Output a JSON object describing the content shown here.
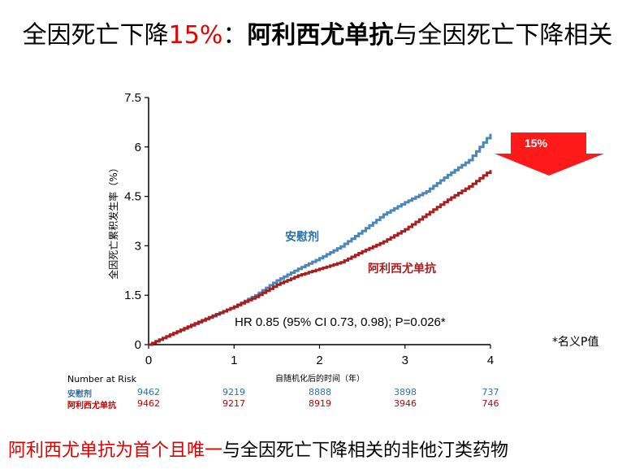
{
  "title": {
    "part1": "全因死亡下降",
    "part2": "15%",
    "part3": "：",
    "part4": "阿利西尤单抗",
    "part5": "与全因死亡下降相关"
  },
  "chart_data": {
    "type": "line",
    "ylabel": "全因死亡累积发生率（%）",
    "xlabel": "自随机化后的时间（年）",
    "ylim": [
      0,
      7.5
    ],
    "xlim": [
      0,
      4
    ],
    "yticks": [
      "0",
      "1.5",
      "3",
      "4.5",
      "6",
      "7.5"
    ],
    "xticks": [
      "0",
      "1",
      "2",
      "3",
      "4"
    ],
    "series": [
      {
        "name": "安慰剂",
        "color": "#4a86b8",
        "x": [
          0,
          0.25,
          0.5,
          0.75,
          1.0,
          1.25,
          1.5,
          1.75,
          2.0,
          2.25,
          2.5,
          2.75,
          3.0,
          3.25,
          3.5,
          3.75,
          4.0
        ],
        "y": [
          0,
          0.3,
          0.58,
          0.86,
          1.16,
          1.5,
          1.95,
          2.3,
          2.62,
          2.98,
          3.45,
          3.95,
          4.32,
          4.65,
          5.15,
          5.6,
          6.4
        ]
      },
      {
        "name": "阿利西尤单抗",
        "color": "#a81e1e",
        "x": [
          0,
          0.25,
          0.5,
          0.75,
          1.0,
          1.25,
          1.5,
          1.75,
          2.0,
          2.25,
          2.5,
          2.75,
          3.0,
          3.25,
          3.5,
          3.75,
          4.0
        ],
        "y": [
          0,
          0.3,
          0.6,
          0.88,
          1.15,
          1.45,
          1.82,
          2.1,
          2.3,
          2.5,
          2.83,
          3.13,
          3.5,
          3.95,
          4.4,
          4.8,
          5.3
        ]
      }
    ],
    "annotation": "HR 0.85 (95% CI 0.73, 0.98); P=0.026*",
    "arrow_label": "15%"
  },
  "risk_table": {
    "header": "Number at Risk",
    "rows": [
      {
        "label": "安慰剂",
        "color": "#2d6fa8",
        "values": [
          "9462",
          "9219",
          "8888",
          "3898",
          "737"
        ]
      },
      {
        "label": "阿利西尤单抗",
        "color": "#c00000",
        "values": [
          "9462",
          "9217",
          "8919",
          "3946",
          "746"
        ]
      }
    ]
  },
  "note": "*名义P值",
  "footer": {
    "red": "阿利西尤单抗为首个且唯一",
    "black": "与全因死亡下降相关的非他汀类药物"
  }
}
